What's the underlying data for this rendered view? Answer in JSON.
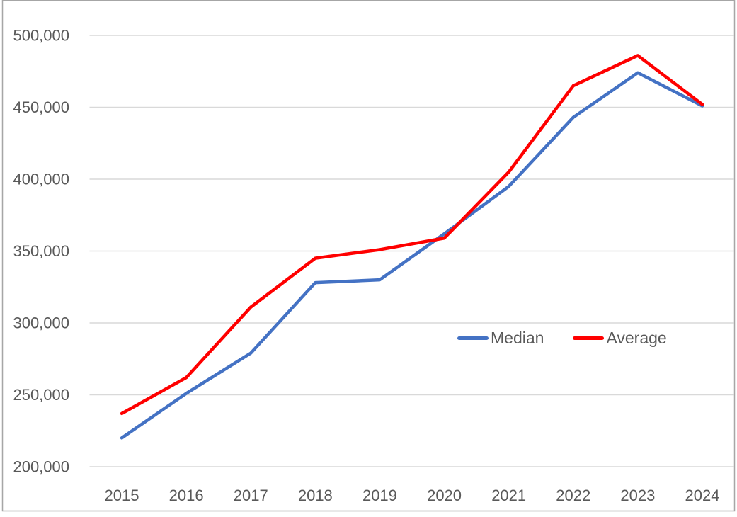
{
  "chart_data": {
    "type": "line",
    "title": "",
    "xlabel": "",
    "ylabel": "",
    "x": [
      "2015",
      "2016",
      "2017",
      "2018",
      "2019",
      "2020",
      "2021",
      "2022",
      "2023",
      "2024"
    ],
    "series": [
      {
        "name": "Median",
        "color": "#4472C4",
        "values": [
          220000,
          251000,
          279000,
          328000,
          330000,
          362000,
          395000,
          443000,
          474000,
          451000
        ]
      },
      {
        "name": "Average",
        "color": "#FF0000",
        "values": [
          237000,
          262000,
          311000,
          345000,
          351000,
          359000,
          405000,
          465000,
          486000,
          452000
        ]
      }
    ],
    "ylim": [
      200000,
      500000
    ],
    "ytick_step": 50000,
    "ytick_labels": [
      "200,000",
      "250,000",
      "300,000",
      "350,000",
      "400,000",
      "450,000",
      "500,000"
    ],
    "grid": true,
    "legend": {
      "position": "inside-right",
      "entries": [
        "Median",
        "Average"
      ]
    }
  },
  "colors": {
    "grid": "#D9D9D9",
    "text": "#595959",
    "frame": "#A6A6A6",
    "background": "#FFFFFF"
  }
}
